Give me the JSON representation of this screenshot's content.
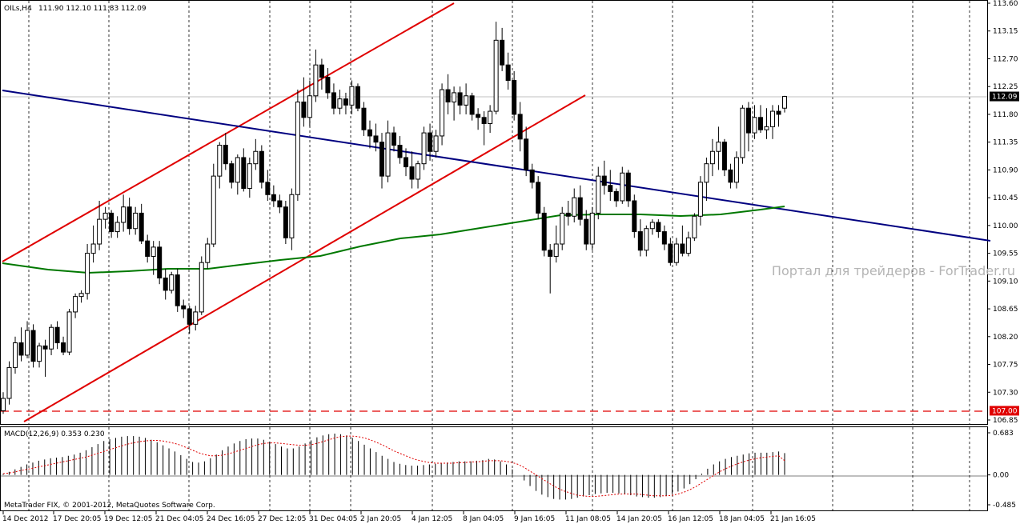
{
  "header": {
    "symbol": "OILs,H4",
    "ohlc": "111.90 112.10 111.83 112.09"
  },
  "macd_header": "MACD(12,26,9) 0.353 0.230",
  "copyright": "MetaTrader FIX, © 2001-2012, MetaQuotes Software Corp.",
  "watermark": "Портал для трейдеров - ForTrader.ru",
  "price_axis": [
    "113.60",
    "113.15",
    "112.70",
    "112.25",
    "111.80",
    "111.35",
    "110.90",
    "110.45",
    "110.00",
    "109.55",
    "109.10",
    "108.65",
    "108.20",
    "107.75",
    "107.30",
    "106.85"
  ],
  "macd_axis": [
    "0.683",
    "0.00",
    "-0.485"
  ],
  "current_price": "112.09",
  "level_price": "107.00",
  "time_axis": [
    "14 Dec 2012",
    "17 Dec 20:05",
    "19 Dec 12:05",
    "21 Dec 04:05",
    "24 Dec 16:05",
    "27 Dec 12:05",
    "31 Dec 04:05",
    "2 Jan 20:05",
    "4 Jan 12:05",
    "8 Jan 04:05",
    "9 Jan 16:05",
    "11 Jan 08:05",
    "14 Jan 20:05",
    "16 Jan 12:05",
    "18 Jan 04:05",
    "21 Jan 16:05"
  ],
  "colors": {
    "up_candle": "#ffffff",
    "down_candle": "#000000",
    "channel": "#e00000",
    "trendline": "#000080",
    "moving_average": "#007800",
    "macd_signal": "#e00000",
    "level_line": "#e00000"
  },
  "chart_data": [
    {
      "type": "candlestick",
      "title": "OILs,H4",
      "ylim": [
        106.85,
        113.6
      ],
      "last_bar_ohlc": [
        111.9,
        112.1,
        111.83,
        112.09
      ],
      "current_price": 112.09,
      "horizontal_level": 107.0,
      "indicators": [
        "price channel",
        "trend line",
        "moving average"
      ],
      "candles_ohlc": [
        [
          107.0,
          107.3,
          106.95,
          107.2
        ],
        [
          107.2,
          107.8,
          107.1,
          107.7
        ],
        [
          107.7,
          108.2,
          107.6,
          108.1
        ],
        [
          108.1,
          108.35,
          107.8,
          107.9
        ],
        [
          107.9,
          108.45,
          107.85,
          108.3
        ],
        [
          108.3,
          108.4,
          107.7,
          107.8
        ],
        [
          107.8,
          108.1,
          107.7,
          108.05
        ],
        [
          108.05,
          108.15,
          107.55,
          108.0
        ],
        [
          108.0,
          108.4,
          107.9,
          108.35
        ],
        [
          108.35,
          108.45,
          108.0,
          108.1
        ],
        [
          108.1,
          108.2,
          107.9,
          107.95
        ],
        [
          107.95,
          108.65,
          107.9,
          108.6
        ],
        [
          108.6,
          108.9,
          108.5,
          108.85
        ],
        [
          108.85,
          108.95,
          108.75,
          108.9
        ],
        [
          108.9,
          109.7,
          108.8,
          109.55
        ],
        [
          109.55,
          110.0,
          109.4,
          109.7
        ],
        [
          109.7,
          110.4,
          109.6,
          110.1
        ],
        [
          110.1,
          110.3,
          109.95,
          110.2
        ],
        [
          110.2,
          110.25,
          109.8,
          109.9
        ],
        [
          109.9,
          110.15,
          109.8,
          110.05
        ],
        [
          110.05,
          110.5,
          109.9,
          110.3
        ],
        [
          110.3,
          110.45,
          109.85,
          109.95
        ],
        [
          109.95,
          110.3,
          109.85,
          110.2
        ],
        [
          110.2,
          110.35,
          109.7,
          109.75
        ],
        [
          109.75,
          109.85,
          109.4,
          109.5
        ],
        [
          109.5,
          109.75,
          109.2,
          109.65
        ],
        [
          109.65,
          109.75,
          109.05,
          109.15
        ],
        [
          109.15,
          109.3,
          108.8,
          108.95
        ],
        [
          108.95,
          109.25,
          108.9,
          109.2
        ],
        [
          109.2,
          109.3,
          108.6,
          108.7
        ],
        [
          108.7,
          108.8,
          108.5,
          108.65
        ],
        [
          108.65,
          108.7,
          108.25,
          108.4
        ],
        [
          108.4,
          108.7,
          108.3,
          108.6
        ],
        [
          108.6,
          109.5,
          108.55,
          109.4
        ],
        [
          109.4,
          109.8,
          109.3,
          109.7
        ],
        [
          109.7,
          111.0,
          109.65,
          110.8
        ],
        [
          110.8,
          111.35,
          110.6,
          111.3
        ],
        [
          111.3,
          111.5,
          110.9,
          111.0
        ],
        [
          111.0,
          111.05,
          110.6,
          110.7
        ],
        [
          110.7,
          111.15,
          110.5,
          111.1
        ],
        [
          111.1,
          111.25,
          110.55,
          110.6
        ],
        [
          110.6,
          111.1,
          110.45,
          111.0
        ],
        [
          111.0,
          111.4,
          110.9,
          111.2
        ],
        [
          111.2,
          111.3,
          110.6,
          110.7
        ],
        [
          110.7,
          110.9,
          110.4,
          110.5
        ],
        [
          110.5,
          110.65,
          110.3,
          110.4
        ],
        [
          110.4,
          110.5,
          110.2,
          110.3
        ],
        [
          110.3,
          110.4,
          109.7,
          109.8
        ],
        [
          109.8,
          110.6,
          109.6,
          110.5
        ],
        [
          110.5,
          112.2,
          110.4,
          112.0
        ],
        [
          112.0,
          112.4,
          111.6,
          111.75
        ],
        [
          111.75,
          112.35,
          111.6,
          112.1
        ],
        [
          112.1,
          112.85,
          112.0,
          112.6
        ],
        [
          112.6,
          112.7,
          112.2,
          112.4
        ],
        [
          112.4,
          112.55,
          112.05,
          112.15
        ],
        [
          112.15,
          112.3,
          111.8,
          111.9
        ],
        [
          111.9,
          112.2,
          111.8,
          112.05
        ],
        [
          112.05,
          112.15,
          111.8,
          111.95
        ],
        [
          111.95,
          112.35,
          111.8,
          112.25
        ],
        [
          112.25,
          112.3,
          111.85,
          111.9
        ],
        [
          111.9,
          112.0,
          111.45,
          111.55
        ],
        [
          111.55,
          111.7,
          111.25,
          111.45
        ],
        [
          111.45,
          111.65,
          111.2,
          111.35
        ],
        [
          111.35,
          111.5,
          110.6,
          110.8
        ],
        [
          110.8,
          111.7,
          110.7,
          111.5
        ],
        [
          111.5,
          111.6,
          111.2,
          111.3
        ],
        [
          111.3,
          111.45,
          111.0,
          111.1
        ],
        [
          111.1,
          111.25,
          110.8,
          110.95
        ],
        [
          110.95,
          111.2,
          110.6,
          110.75
        ],
        [
          110.75,
          111.05,
          110.6,
          111.0
        ],
        [
          111.0,
          111.6,
          110.9,
          111.5
        ],
        [
          111.5,
          111.65,
          111.05,
          111.2
        ],
        [
          111.2,
          111.55,
          111.1,
          111.45
        ],
        [
          111.45,
          112.3,
          111.3,
          112.2
        ],
        [
          112.2,
          112.45,
          111.8,
          112.0
        ],
        [
          112.0,
          112.25,
          111.7,
          112.15
        ],
        [
          112.15,
          112.25,
          111.8,
          111.95
        ],
        [
          111.95,
          112.3,
          111.8,
          112.1
        ],
        [
          112.1,
          112.15,
          111.7,
          111.8
        ],
        [
          111.8,
          111.9,
          111.55,
          111.75
        ],
        [
          111.75,
          111.85,
          111.3,
          111.65
        ],
        [
          111.65,
          111.95,
          111.5,
          111.85
        ],
        [
          111.85,
          113.3,
          111.8,
          113.0
        ],
        [
          113.0,
          113.2,
          112.5,
          112.6
        ],
        [
          112.6,
          112.8,
          112.2,
          112.35
        ],
        [
          112.35,
          112.5,
          111.7,
          111.8
        ],
        [
          111.8,
          112.0,
          111.2,
          111.4
        ],
        [
          111.4,
          111.6,
          110.8,
          110.9
        ],
        [
          110.9,
          111.0,
          110.6,
          110.7
        ],
        [
          110.7,
          110.8,
          110.1,
          110.2
        ],
        [
          110.2,
          110.3,
          109.5,
          109.6
        ],
        [
          109.6,
          109.7,
          108.9,
          109.5
        ],
        [
          109.5,
          110.0,
          109.4,
          109.7
        ],
        [
          109.7,
          110.3,
          109.6,
          110.2
        ],
        [
          110.2,
          110.4,
          110.0,
          110.15
        ],
        [
          110.15,
          110.6,
          110.05,
          110.45
        ],
        [
          110.45,
          110.65,
          110.0,
          110.1
        ],
        [
          110.1,
          110.25,
          109.6,
          109.7
        ],
        [
          109.7,
          110.3,
          109.6,
          110.2
        ],
        [
          110.2,
          110.95,
          110.1,
          110.8
        ],
        [
          110.8,
          111.05,
          110.5,
          110.65
        ],
        [
          110.65,
          110.9,
          110.4,
          110.55
        ],
        [
          110.55,
          110.6,
          110.3,
          110.4
        ],
        [
          110.4,
          110.95,
          110.35,
          110.85
        ],
        [
          110.85,
          110.9,
          110.3,
          110.4
        ],
        [
          110.4,
          110.5,
          109.8,
          109.9
        ],
        [
          109.9,
          110.1,
          109.5,
          109.6
        ],
        [
          109.6,
          110.0,
          109.5,
          109.95
        ],
        [
          109.95,
          110.1,
          109.85,
          110.05
        ],
        [
          110.05,
          110.1,
          109.8,
          109.9
        ],
        [
          109.9,
          110.0,
          109.6,
          109.7
        ],
        [
          109.7,
          109.8,
          109.35,
          109.4
        ],
        [
          109.4,
          109.8,
          109.35,
          109.7
        ],
        [
          109.7,
          110.0,
          109.5,
          109.55
        ],
        [
          109.55,
          109.9,
          109.5,
          109.8
        ],
        [
          109.8,
          110.2,
          109.75,
          110.15
        ],
        [
          110.15,
          110.8,
          110.0,
          110.7
        ],
        [
          110.7,
          111.1,
          110.4,
          111.0
        ],
        [
          111.0,
          111.4,
          110.8,
          111.2
        ],
        [
          111.2,
          111.6,
          110.9,
          111.35
        ],
        [
          111.35,
          111.4,
          110.8,
          110.9
        ],
        [
          110.9,
          111.0,
          110.6,
          110.7
        ],
        [
          110.7,
          111.2,
          110.6,
          111.1
        ],
        [
          111.1,
          111.95,
          111.0,
          111.9
        ],
        [
          111.9,
          112.0,
          111.2,
          111.5
        ],
        [
          111.5,
          111.95,
          111.4,
          111.75
        ],
        [
          111.75,
          111.95,
          111.5,
          111.55
        ],
        [
          111.55,
          111.9,
          111.4,
          111.6
        ],
        [
          111.6,
          111.95,
          111.4,
          111.85
        ],
        [
          111.85,
          111.95,
          111.6,
          111.8
        ],
        [
          111.9,
          112.1,
          111.83,
          112.09
        ]
      ]
    },
    {
      "type": "bar",
      "title": "MACD(12,26,9)",
      "macd_value": 0.353,
      "signal_value": 0.23,
      "ylim": [
        -0.485,
        0.683
      ],
      "histogram": [
        0.02,
        0.05,
        0.09,
        0.13,
        0.17,
        0.2,
        0.23,
        0.25,
        0.27,
        0.28,
        0.29,
        0.31,
        0.33,
        0.36,
        0.4,
        0.45,
        0.5,
        0.55,
        0.58,
        0.6,
        0.62,
        0.63,
        0.63,
        0.62,
        0.6,
        0.57,
        0.53,
        0.48,
        0.43,
        0.38,
        0.32,
        0.26,
        0.21,
        0.2,
        0.22,
        0.27,
        0.33,
        0.4,
        0.46,
        0.51,
        0.55,
        0.58,
        0.59,
        0.59,
        0.57,
        0.54,
        0.5,
        0.46,
        0.43,
        0.43,
        0.46,
        0.51,
        0.56,
        0.61,
        0.64,
        0.66,
        0.67,
        0.66,
        0.64,
        0.6,
        0.55,
        0.49,
        0.43,
        0.37,
        0.31,
        0.26,
        0.21,
        0.18,
        0.16,
        0.15,
        0.15,
        0.16,
        0.17,
        0.18,
        0.19,
        0.2,
        0.21,
        0.22,
        0.22,
        0.22,
        0.23,
        0.24,
        0.26,
        0.25,
        0.22,
        0.17,
        0.09,
        0.0,
        -0.09,
        -0.18,
        -0.26,
        -0.32,
        -0.36,
        -0.39,
        -0.4,
        -0.4,
        -0.39,
        -0.37,
        -0.35,
        -0.33,
        -0.31,
        -0.3,
        -0.29,
        -0.29,
        -0.3,
        -0.31,
        -0.33,
        -0.35,
        -0.36,
        -0.37,
        -0.37,
        -0.36,
        -0.34,
        -0.31,
        -0.27,
        -0.22,
        -0.15,
        -0.07,
        0.02,
        0.1,
        0.17,
        0.22,
        0.26,
        0.29,
        0.31,
        0.33,
        0.35,
        0.36,
        0.36,
        0.36,
        0.37,
        0.38,
        0.353
      ],
      "signal": [
        0.02,
        0.03,
        0.05,
        0.07,
        0.09,
        0.11,
        0.13,
        0.15,
        0.17,
        0.19,
        0.21,
        0.23,
        0.25,
        0.27,
        0.29,
        0.32,
        0.35,
        0.38,
        0.41,
        0.44,
        0.47,
        0.5,
        0.52,
        0.54,
        0.55,
        0.56,
        0.56,
        0.55,
        0.53,
        0.51,
        0.48,
        0.44,
        0.4,
        0.36,
        0.33,
        0.31,
        0.31,
        0.32,
        0.34,
        0.37,
        0.4,
        0.43,
        0.46,
        0.49,
        0.51,
        0.52,
        0.52,
        0.51,
        0.5,
        0.49,
        0.48,
        0.48,
        0.49,
        0.51,
        0.54,
        0.57,
        0.6,
        0.62,
        0.63,
        0.63,
        0.62,
        0.6,
        0.57,
        0.53,
        0.49,
        0.44,
        0.39,
        0.35,
        0.31,
        0.27,
        0.24,
        0.22,
        0.2,
        0.19,
        0.19,
        0.19,
        0.19,
        0.2,
        0.2,
        0.21,
        0.21,
        0.22,
        0.23,
        0.23,
        0.23,
        0.22,
        0.2,
        0.17,
        0.12,
        0.06,
        0.0,
        -0.06,
        -0.12,
        -0.18,
        -0.23,
        -0.27,
        -0.3,
        -0.33,
        -0.34,
        -0.35,
        -0.35,
        -0.34,
        -0.33,
        -0.32,
        -0.31,
        -0.31,
        -0.31,
        -0.31,
        -0.32,
        -0.33,
        -0.34,
        -0.34,
        -0.34,
        -0.33,
        -0.31,
        -0.28,
        -0.24,
        -0.19,
        -0.13,
        -0.07,
        -0.01,
        0.05,
        0.1,
        0.14,
        0.18,
        0.21,
        0.24,
        0.26,
        0.28,
        0.29,
        0.3,
        0.31,
        0.23
      ]
    }
  ]
}
